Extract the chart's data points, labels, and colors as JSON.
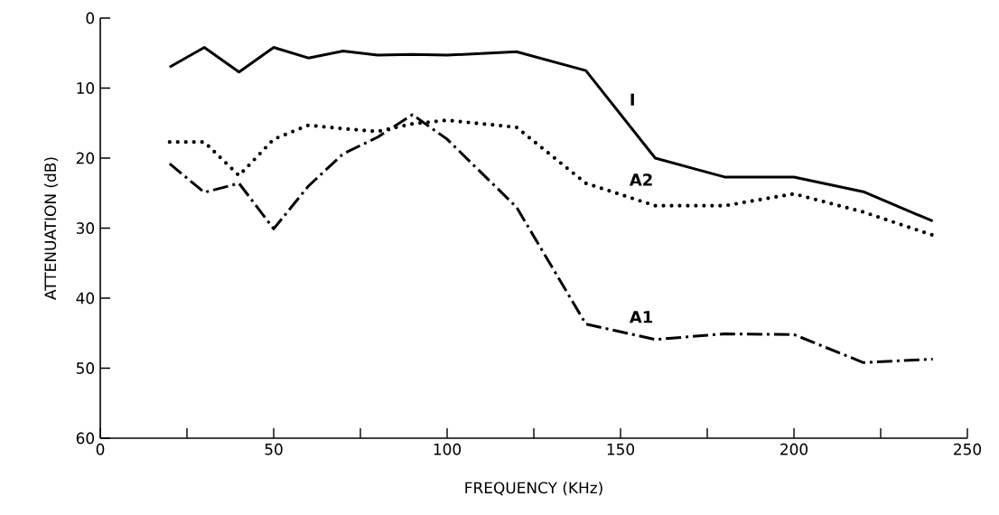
{
  "chart_data": {
    "type": "line",
    "xlabel": "FREQUENCY (KHz)",
    "ylabel": "ATTENUATION (dB)",
    "x": [
      20,
      30,
      40,
      50,
      60,
      70,
      80,
      90,
      100,
      120,
      140,
      160,
      180,
      200,
      220,
      240
    ],
    "series": [
      {
        "name": "I",
        "color": "#000000",
        "line_style": "solid",
        "values": [
          7.0,
          4.2,
          7.7,
          4.2,
          5.7,
          4.7,
          5.3,
          5.2,
          5.3,
          4.8,
          7.5,
          20,
          22.7,
          22.7,
          24.8,
          29.0
        ]
      },
      {
        "name": "A2",
        "color": "#000000",
        "line_style": "dotted",
        "values": [
          17.7,
          17.7,
          22.5,
          17.3,
          15.3,
          15.8,
          16.2,
          15.1,
          14.6,
          15.6,
          23.6,
          26.8,
          26.8,
          25.1,
          27.7,
          31.0
        ]
      },
      {
        "name": "A1",
        "color": "#000000",
        "line_style": "dashdot",
        "values": [
          20.8,
          24.9,
          23.6,
          30.1,
          24.0,
          19.4,
          17.0,
          13.8,
          17.3,
          27.0,
          43.7,
          45.9,
          45.1,
          45.2,
          49.2,
          48.7
        ]
      }
    ],
    "xlim": [
      0,
      250
    ],
    "ylim": [
      60,
      0
    ],
    "xticks": [
      0,
      {
        "value": 25,
        "label": null
      },
      50,
      {
        "value": 75,
        "label": null
      },
      100,
      {
        "value": 125,
        "label": null
      },
      150,
      {
        "value": 175,
        "label": null
      },
      200,
      {
        "value": 225,
        "label": null
      },
      250
    ],
    "yticks": [
      0,
      10,
      20,
      30,
      40,
      50,
      60
    ],
    "grid": false,
    "marker": "none"
  }
}
